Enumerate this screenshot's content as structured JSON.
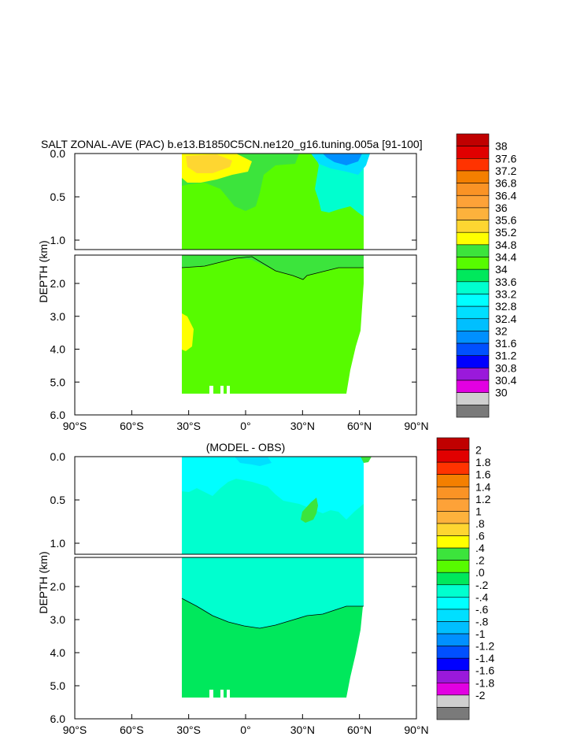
{
  "chart_data": [
    {
      "type": "heatmap",
      "title": "SALT ZONAL-AVE (PAC) b.e13.B1850C5CN.ne120_g16.tuning.005a [91-100]",
      "ylabel": "DEPTH (km)",
      "x_ticks": [
        "90°S",
        "60°S",
        "30°S",
        "0°",
        "30°N",
        "60°N",
        "90°N"
      ],
      "upper_y_ticks": [
        "0.0",
        "0.5",
        "1.0"
      ],
      "lower_y_ticks": [
        "2.0",
        "3.0",
        "4.0",
        "5.0",
        "6.0"
      ],
      "colorbar_labels": [
        "38",
        "37.6",
        "37.2",
        "36.8",
        "36.4",
        "36",
        "35.6",
        "35.2",
        "34.8",
        "34.4",
        "34",
        "33.6",
        "33.2",
        "32.8",
        "32.4",
        "32",
        "31.6",
        "31.2",
        "30.8",
        "30.4",
        "30"
      ],
      "colorbar_colors": [
        "#c00000",
        "#e10000",
        "#ff3300",
        "#f47f00",
        "#fa9325",
        "#fda238",
        "#fdb23c",
        "#fed631",
        "#ffff00",
        "#3ce43c",
        "#57fb00",
        "#00e85c",
        "#00ffcf",
        "#00ffff",
        "#00dfff",
        "#00bfff",
        "#0090ff",
        "#0050ff",
        "#0000ff",
        "#9a19db",
        "#e200e2",
        "#cfcfcf",
        "#7a7a7a"
      ]
    },
    {
      "type": "heatmap",
      "title": "(MODEL - OBS)",
      "ylabel": "DEPTH (km)",
      "x_ticks": [
        "90°S",
        "60°S",
        "30°S",
        "0°",
        "30°N",
        "60°N",
        "90°N"
      ],
      "upper_y_ticks": [
        "0.0",
        "0.5",
        "1.0"
      ],
      "lower_y_ticks": [
        "2.0",
        "3.0",
        "4.0",
        "5.0",
        "6.0"
      ],
      "colorbar_labels": [
        "2",
        "1.8",
        "1.6",
        "1.4",
        "1.2",
        "1",
        ".8",
        ".6",
        ".4",
        ".2",
        ".0",
        "-.2",
        "-.4",
        "-.6",
        "-.8",
        "-1",
        "-1.2",
        "-1.4",
        "-1.6",
        "-1.8",
        "-2"
      ]
    }
  ]
}
